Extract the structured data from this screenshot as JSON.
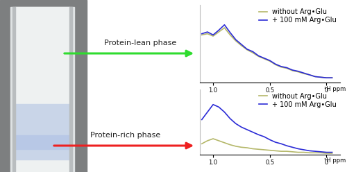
{
  "diagram": {
    "arrows": [
      {
        "label": "Protein-lean phase",
        "color": "#2fdc2f"
      },
      {
        "label": "Protein-rich phase",
        "color": "#ee2020"
      }
    ]
  },
  "chart_data": [
    {
      "type": "line",
      "xlabel": "¹H ppm",
      "tick_labels": "x",
      "legend": "upper right",
      "x": [
        1.1,
        1.05,
        1.0,
        0.95,
        0.9,
        0.85,
        0.8,
        0.75,
        0.7,
        0.65,
        0.6,
        0.55,
        0.5,
        0.45,
        0.4,
        0.35,
        0.3,
        0.25,
        0.2,
        0.15,
        0.1,
        0.05,
        0.0,
        -0.05
      ],
      "xlim": [
        1.12,
        -0.12
      ],
      "xticks": [
        {
          "value": 1.0,
          "label": "1.0"
        },
        0.5,
        0
      ],
      "ylim": [
        0,
        1.3
      ],
      "series": [
        {
          "name": "without Arg•Glu",
          "color": "#b5b86a",
          "values": [
            0.8,
            0.82,
            0.78,
            0.85,
            0.92,
            0.8,
            0.7,
            0.62,
            0.55,
            0.5,
            0.44,
            0.4,
            0.36,
            0.3,
            0.26,
            0.24,
            0.2,
            0.18,
            0.15,
            0.13,
            0.1,
            0.09,
            0.08,
            0.08
          ]
        },
        {
          "name": "+ 100 mM Arg•Glu",
          "color": "#2b2bd6",
          "values": [
            0.82,
            0.85,
            0.8,
            0.88,
            0.97,
            0.84,
            0.72,
            0.64,
            0.56,
            0.52,
            0.45,
            0.41,
            0.37,
            0.31,
            0.27,
            0.25,
            0.21,
            0.19,
            0.16,
            0.13,
            0.1,
            0.09,
            0.08,
            0.08
          ]
        }
      ]
    },
    {
      "type": "line",
      "xlabel": "¹H ppm",
      "tick_labels": "x",
      "legend": "upper right",
      "x": [
        1.1,
        1.05,
        1.0,
        0.95,
        0.9,
        0.85,
        0.8,
        0.75,
        0.7,
        0.65,
        0.6,
        0.55,
        0.5,
        0.45,
        0.4,
        0.35,
        0.3,
        0.25,
        0.2,
        0.15,
        0.1,
        0.05,
        0.0,
        -0.05
      ],
      "xlim": [
        1.12,
        -0.12
      ],
      "xticks": [
        {
          "value": 1.0,
          "label": "1.0"
        },
        0.5,
        0
      ],
      "ylim": [
        0,
        1.3
      ],
      "series": [
        {
          "name": "without Arg•Glu",
          "color": "#b5b86a",
          "values": [
            0.22,
            0.28,
            0.32,
            0.28,
            0.24,
            0.2,
            0.17,
            0.15,
            0.14,
            0.12,
            0.11,
            0.1,
            0.09,
            0.08,
            0.07,
            0.07,
            0.06,
            0.05,
            0.05,
            0.04,
            0.04,
            0.04,
            0.03,
            0.03
          ]
        },
        {
          "name": "+ 100 mM Arg•Glu",
          "color": "#2b2bd6",
          "values": [
            0.7,
            0.85,
            1.0,
            0.95,
            0.85,
            0.72,
            0.62,
            0.55,
            0.5,
            0.45,
            0.4,
            0.36,
            0.3,
            0.25,
            0.22,
            0.18,
            0.15,
            0.12,
            0.1,
            0.08,
            0.07,
            0.06,
            0.05,
            0.05
          ]
        }
      ]
    }
  ]
}
